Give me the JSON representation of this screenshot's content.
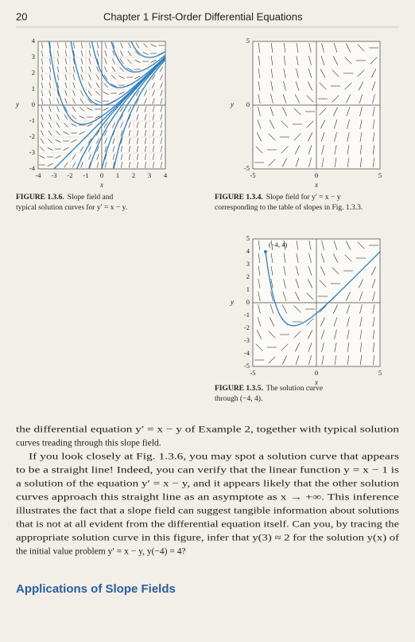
{
  "header": {
    "page_number": "20",
    "chapter": "Chapter 1 First-Order Differential Equations"
  },
  "figures": [
    {
      "label": "FIGURE 1.3.6.",
      "caption": [
        "Slope field and",
        "typical solution curves for y′ = x − y."
      ],
      "xlabel": "x",
      "ylabel": "y",
      "xticks": [
        -4,
        -3,
        -2,
        -1,
        0,
        1,
        2,
        3,
        4
      ],
      "yticks": [
        -4,
        -3,
        -2,
        -1,
        0,
        1,
        2,
        3,
        4
      ]
    },
    {
      "label": "FIGURE 1.3.4.",
      "caption": [
        "Slope field for y′ = x − y",
        "corresponding to the table of slopes in Fig. 1.3.3."
      ],
      "xlabel": "x",
      "ylabel": "y",
      "xticks": [
        -5,
        0,
        5
      ],
      "yticks": [
        -5,
        0,
        5
      ]
    },
    {
      "label": "FIGURE 1.3.5.",
      "caption": [
        "The solution curve",
        "through (−4, 4)."
      ],
      "xlabel": "x",
      "ylabel": "y",
      "xticks": [
        -5,
        0,
        5
      ],
      "yticks": [
        5,
        4,
        3,
        2,
        1,
        0,
        -1,
        -2,
        -3,
        -4,
        -5
      ],
      "point_label": "(−4, 4)"
    }
  ],
  "body": {
    "lines": [
      "the differential equation y′ = x − y of Example 2, together with typical solution",
      "curves treading through this slope field.",
      "If you look closely at Fig. 1.3.6, you may spot a solution curve that appears",
      "to be a straight line! Indeed, you can verify that the linear function y = x − 1 is",
      "a solution of the equation y′ = x − y, and it appears likely that the other solution",
      "curves approach this straight line as an asymptote as x → +∞. This inference",
      "illustrates the fact that a slope field can suggest tangible information about solutions",
      "that is not at all evident from the differential equation itself. Can you, by tracing the",
      "appropriate solution curve in this figure, infer that y(3) ≈ 2 for the solution y(x) of",
      "the initial value problem y′ = x − y, y(−4) = 4?"
    ],
    "section_heading": "Applications of Slope Fields"
  }
}
